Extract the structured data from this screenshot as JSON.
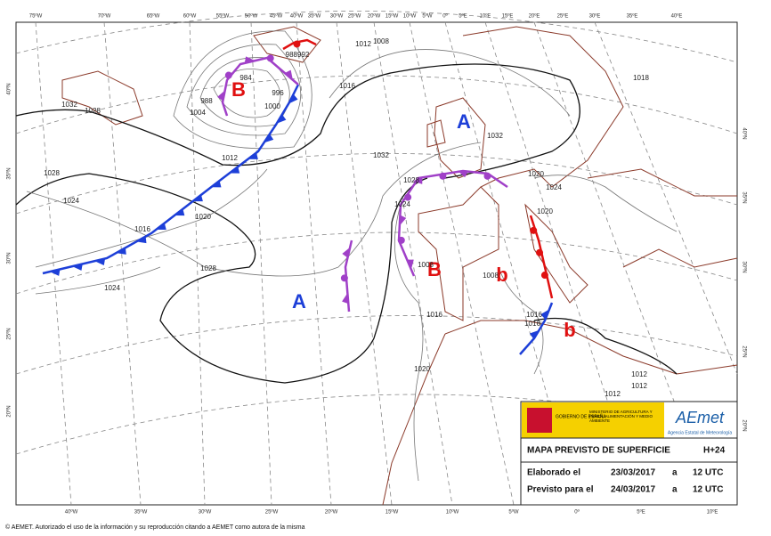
{
  "map": {
    "lon_labels_top": [
      "75ºW",
      "70ºW",
      "65ºW",
      "60ºW",
      "55ºW",
      "50ºW",
      "45ºW",
      "40ºW",
      "35ºW",
      "30ºW",
      "25ºW",
      "20ºW",
      "15ºW",
      "10ºW",
      "5ºW",
      "0º",
      "5ºE",
      "10ºE",
      "15ºE",
      "20ºE",
      "25ºE",
      "30ºE",
      "35ºE",
      "40ºE"
    ],
    "lon_labels_bottom": [
      "40ºW",
      "35ºW",
      "30ºW",
      "25ºW",
      "20ºW",
      "15ºW",
      "10ºW",
      "5ºW",
      "0º",
      "5ºE",
      "10ºE"
    ],
    "lat_labels_left": [
      "40ºN",
      "35ºN",
      "30ºN",
      "25ºN",
      "20ºN"
    ],
    "lat_labels_right": [
      "40ºN",
      "35ºN",
      "30ºN",
      "25ºN",
      "20ºN"
    ],
    "pressure_centers": [
      "B",
      "A",
      "B",
      "b",
      "A",
      "b"
    ],
    "isobar_labels": [
      "1028",
      "1032",
      "1028",
      "1024",
      "1016",
      "1020",
      "1028",
      "1024",
      "1012",
      "1000",
      "996",
      "984",
      "988",
      "1004",
      "1012",
      "1008",
      "988992",
      "1016",
      "1032",
      "1028",
      "1024",
      "1032",
      "1008",
      "1016",
      "1020",
      "1008",
      "1016",
      "1020",
      "1024",
      "1020",
      "1012",
      "1012",
      "1012",
      "1018",
      "1016"
    ]
  },
  "info_box": {
    "gov": "GOBIERNO DE ESPAÑA",
    "ministry": "MINISTERIO DE AGRICULTURA Y PESCA, ALIMENTACIÓN Y MEDIO AMBIENTE",
    "logo": "AEmet",
    "logo_sub": "Agencia Estatal de Meteorología",
    "title": "MAPA PREVISTO DE SUPERFICIE",
    "step": "H+24",
    "rows": [
      [
        "Elaborado el",
        "23/03/2017",
        "a",
        "12 UTC"
      ],
      [
        "Previsto para el",
        "24/03/2017",
        "a",
        "12 UTC"
      ]
    ]
  },
  "footer": "© AEMET. Autorizado el uso de la información y su reproducción citando a AEMET como autora de la misma"
}
